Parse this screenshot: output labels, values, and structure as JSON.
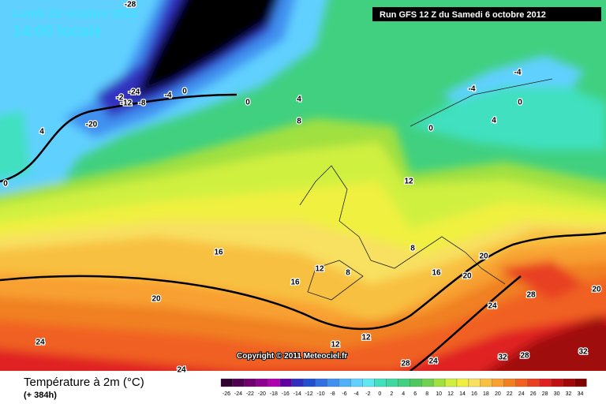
{
  "header": {
    "title": "Lundi 22 octobre 2012",
    "time": "14:00 locale",
    "run": "Run GFS 12 Z du Samedi 6 octobre 2012"
  },
  "copyright": "Copyright © 2011 Meteociel.fr",
  "legend": {
    "title": "Température à 2m (°C)",
    "lead_time": "(+ 384h)",
    "labels": [
      -26,
      -24,
      -22,
      -20,
      -18,
      -16,
      -14,
      -12,
      -10,
      -8,
      -6,
      -4,
      -2,
      0,
      2,
      4,
      6,
      8,
      10,
      12,
      14,
      16,
      18,
      20,
      22,
      24,
      26,
      28,
      30,
      32,
      34
    ],
    "colors": [
      "#300030",
      "#500050",
      "#700070",
      "#900090",
      "#b000b0",
      "#6000a0",
      "#3030c0",
      "#2050d0",
      "#3070e0",
      "#4090f0",
      "#50b0f8",
      "#60d0ff",
      "#60e8f0",
      "#40e0c0",
      "#40d8a0",
      "#40d080",
      "#50c860",
      "#70d050",
      "#a0e040",
      "#d0f040",
      "#f0f040",
      "#f8e060",
      "#f8c040",
      "#f8a030",
      "#f08020",
      "#f06020",
      "#e84020",
      "#e02020",
      "#c01010",
      "#a00808",
      "#800000"
    ]
  },
  "contour_labels": [
    -28,
    -24,
    -2,
    -12,
    -8,
    -4,
    0,
    -20,
    4,
    0,
    0,
    4,
    8,
    -4,
    -4,
    0,
    4,
    0,
    12,
    16,
    12,
    8,
    8,
    16,
    16,
    20,
    20,
    20,
    24,
    28,
    20,
    24,
    12,
    12,
    24,
    28,
    32,
    28,
    32,
    24
  ]
}
